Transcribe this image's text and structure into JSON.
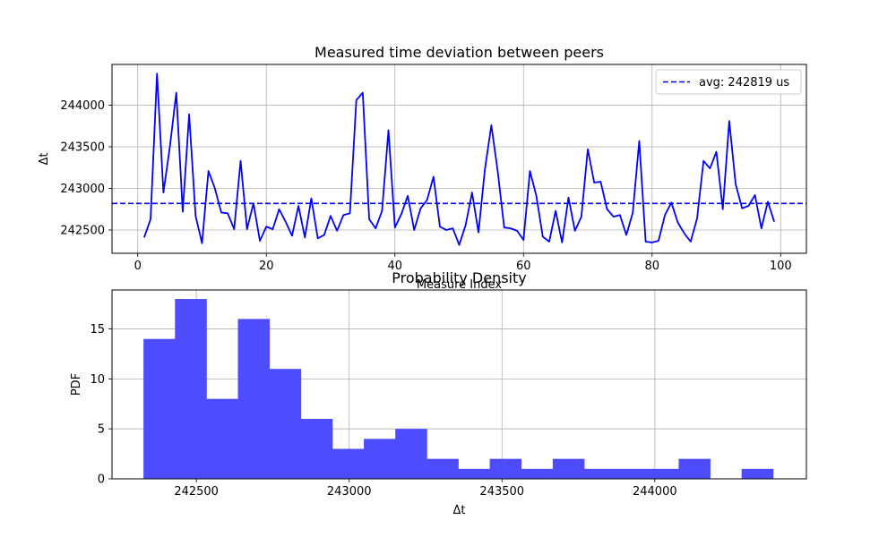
{
  "colors": {
    "line": "#0000ff",
    "bars": "#4d4dff",
    "grid": "#b0b0b0",
    "axes": "#000000"
  },
  "chart_data": [
    {
      "type": "line",
      "title": "Measured time deviation between peers",
      "xlabel": "Measure Index",
      "ylabel": "Δt",
      "xlim": [
        -4,
        104
      ],
      "ylim": [
        242220,
        244490
      ],
      "xticks": [
        0,
        20,
        40,
        60,
        80,
        100
      ],
      "xtick_labels": [
        "0",
        "20",
        "40",
        "60",
        "80",
        "100"
      ],
      "yticks": [
        242500,
        243000,
        243500,
        244000
      ],
      "ytick_labels": [
        "242500",
        "243000",
        "243500",
        "244000"
      ],
      "grid": true,
      "legend_position": "top-right",
      "series": [
        {
          "name": "",
          "style": "solid",
          "x": [
            1,
            2,
            3,
            4,
            5,
            6,
            7,
            8,
            9,
            10,
            11,
            12,
            13,
            14,
            15,
            16,
            17,
            18,
            19,
            20,
            21,
            22,
            23,
            24,
            25,
            26,
            27,
            28,
            29,
            30,
            31,
            32,
            33,
            34,
            35,
            36,
            37,
            38,
            39,
            40,
            41,
            42,
            43,
            44,
            45,
            46,
            47,
            48,
            49,
            50,
            51,
            52,
            53,
            54,
            55,
            56,
            57,
            58,
            59,
            60,
            61,
            62,
            63,
            64,
            65,
            66,
            67,
            68,
            69,
            70,
            71,
            72,
            73,
            74,
            75,
            76,
            77,
            78,
            79,
            80,
            81,
            82,
            83,
            84,
            85,
            86,
            87,
            88,
            89,
            90,
            91,
            92,
            93,
            94,
            95,
            96,
            97,
            98,
            99
          ],
          "values": [
            242410,
            242630,
            244380,
            242950,
            243500,
            244150,
            242720,
            243890,
            242670,
            242340,
            243210,
            243000,
            242710,
            242700,
            242510,
            243330,
            242510,
            242820,
            242370,
            242540,
            242510,
            242750,
            242600,
            242430,
            242790,
            242410,
            242880,
            242400,
            242440,
            242670,
            242490,
            242680,
            242700,
            244060,
            244150,
            242630,
            242520,
            242730,
            243700,
            242530,
            242690,
            242910,
            242500,
            242760,
            242860,
            243140,
            242540,
            242500,
            242520,
            242320,
            242560,
            242950,
            242470,
            243230,
            243760,
            243200,
            242530,
            242520,
            242490,
            242380,
            243210,
            242910,
            242420,
            242360,
            242730,
            242350,
            242890,
            242490,
            242660,
            243470,
            243070,
            243080,
            242750,
            242660,
            242680,
            242440,
            242710,
            243570,
            242360,
            242350,
            242370,
            242680,
            242830,
            242590,
            242460,
            242360,
            242640,
            243330,
            243240,
            243440,
            242750,
            243810,
            243050,
            242760,
            242790,
            242920,
            242520,
            242840,
            242600
          ]
        },
        {
          "name": "avg: 242819 us",
          "style": "dashed",
          "constant": 242819
        }
      ]
    },
    {
      "type": "bar",
      "title": "Probability Density",
      "xlabel": "Δt",
      "ylabel": "PDF",
      "xlim": [
        242224,
        244496
      ],
      "ylim": [
        0,
        18.9
      ],
      "xticks": [
        242500,
        243000,
        243500,
        244000
      ],
      "xtick_labels": [
        "242500",
        "243000",
        "243500",
        "244000"
      ],
      "yticks": [
        0,
        5,
        10,
        15
      ],
      "ytick_labels": [
        "0",
        "5",
        "10",
        "15"
      ],
      "grid": true,
      "bin_edges": [
        242327,
        242430,
        242533,
        242636,
        242739,
        242842,
        242945,
        243048,
        243151,
        243254,
        243357,
        243460,
        243563,
        243666,
        243769,
        243872,
        243975,
        244078,
        244181,
        244284,
        244387
      ],
      "values": [
        14,
        18,
        8,
        16,
        11,
        6,
        3,
        4,
        5,
        2,
        1,
        2,
        1,
        2,
        1,
        1,
        1,
        2,
        0,
        1
      ]
    }
  ]
}
